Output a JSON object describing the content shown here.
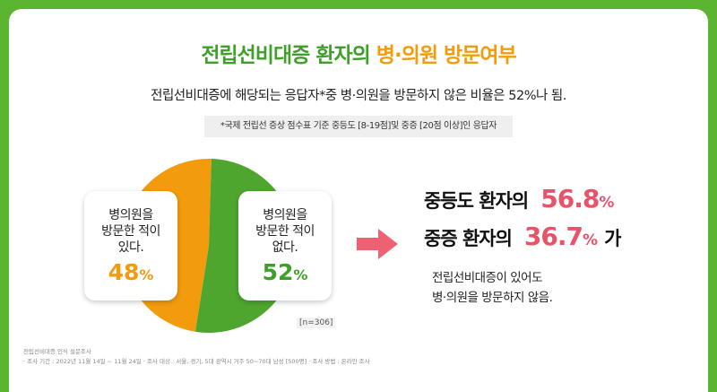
{
  "header": {
    "title_main": "전립선비대증 환자의 ",
    "title_highlight": "병·의원 방문여부",
    "subtitle": "전립선비대증에 해당되는 응답자*중 병·의원을 방문하지 않은 비율은 52%나 됨.",
    "note": "*국제 전립선 증상 점수표 기준 중등도 [8-19점]및 중증 [20점 이상]인 응답자"
  },
  "chart_data": {
    "type": "pie",
    "slices": [
      {
        "label": "병의원을\n방문한 적이\n있다.",
        "value": 48,
        "color": "#f29c0d"
      },
      {
        "label": "병의원을\n방문한 적이\n없다.",
        "value": 52,
        "color": "#4ea62f"
      }
    ],
    "value_suffix": "%",
    "n_note": "[n=306]"
  },
  "callout": {
    "line1_prefix": "중등도 환자의",
    "line1_value": "56.8",
    "line2_prefix": "중증 환자의",
    "line2_value": "36.7",
    "line2_suffix": "가",
    "percent": "%",
    "description": "전립선비대증이 있어도\n병·의원을 방문하지 않음."
  },
  "source": "전립선비대증 인식 설문조사\n· 조사 기간 : 2022년 11월 14일 ~ 11월 24일 · 조사 대상 : 서울, 경기, 5대 광역시 거주 50~70대 남성 [500명] · 조사 방법 : 온라인 조사"
}
